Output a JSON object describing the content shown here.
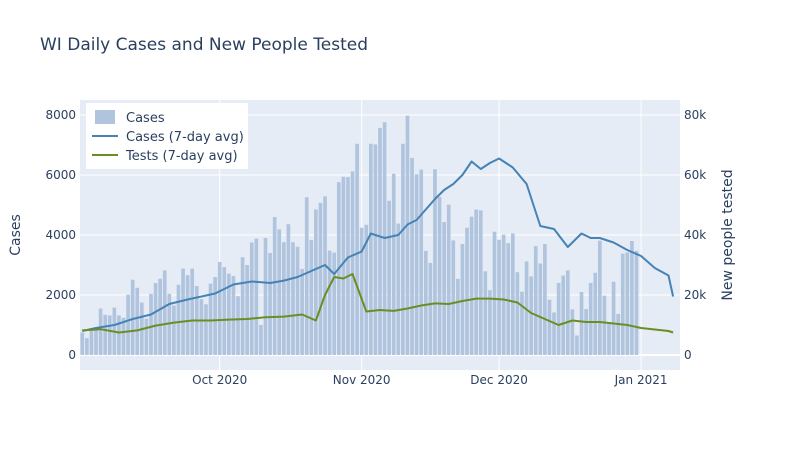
{
  "chart_data": {
    "type": "bar",
    "title": "WI Daily Cases and New People Tested",
    "ylabel": "Cases",
    "y2label": "New people tested",
    "ylim": [
      -500,
      8500
    ],
    "y2lim": [
      -5000,
      85000
    ],
    "yticks": [
      "0",
      "2000",
      "4000",
      "6000",
      "8000"
    ],
    "y2ticks": [
      "0",
      "20k",
      "40k",
      "60k",
      "80k"
    ],
    "xticks": [
      "Oct 2020",
      "Nov 2020",
      "Dec 2020",
      "Jan 2021"
    ],
    "x_start_date": "2020-09-01",
    "x_end_date": "2021-01-08",
    "grid": true,
    "legend_position": "top-left",
    "colors": {
      "bars": "#b0c4de",
      "cases_avg": "#4682b4",
      "tests_avg": "#6b8e23",
      "plot_bg": "#e5ecf6"
    },
    "series": [
      {
        "name": "Cases",
        "kind": "bar",
        "axis": "left",
        "values": [
          750,
          560,
          900,
          820,
          1550,
          1340,
          1320,
          1580,
          1320,
          1240,
          2010,
          2510,
          2240,
          1750,
          1210,
          2040,
          2400,
          2540,
          2820,
          2040,
          1650,
          2340,
          2880,
          2660,
          2880,
          2300,
          1860,
          1690,
          2380,
          2600,
          3100,
          2930,
          2710,
          2630,
          1960,
          3260,
          3000,
          3750,
          3880,
          1000,
          3900,
          3400,
          4600,
          4190,
          3760,
          4360,
          3760,
          3610,
          2870,
          5260,
          3830,
          4850,
          5070,
          5290,
          3480,
          3410,
          5760,
          5940,
          5930,
          6120,
          7040,
          4240,
          4340,
          7040,
          7020,
          7570,
          7760,
          5140,
          6040,
          4380,
          7040,
          7980,
          6570,
          6020,
          6180,
          3470,
          3070,
          6190,
          5270,
          4430,
          5010,
          3820,
          2540,
          3700,
          4240,
          4610,
          4850,
          4820,
          2790,
          2160,
          4110,
          3840,
          4010,
          3730,
          4050,
          2760,
          2110,
          3120,
          2620,
          3630,
          3050,
          3700,
          1840,
          1420,
          2400,
          2650,
          2820,
          1520,
          650,
          2100,
          1530,
          2400,
          2740,
          3810,
          1980,
          1050,
          2440,
          1370,
          3380,
          3420,
          3800,
          3470
        ],
        "note": "daily bar heights, approx. from 2020-09-01"
      },
      {
        "name": "Cases (7-day avg)",
        "kind": "line",
        "axis": "left",
        "x": [
          "2020-09-01",
          "2020-09-04",
          "2020-09-08",
          "2020-09-12",
          "2020-09-16",
          "2020-09-20",
          "2020-09-24",
          "2020-09-27",
          "2020-09-30",
          "2020-10-04",
          "2020-10-08",
          "2020-10-12",
          "2020-10-15",
          "2020-10-18",
          "2020-10-21",
          "2020-10-24",
          "2020-10-26",
          "2020-10-29",
          "2020-11-01",
          "2020-11-03",
          "2020-11-06",
          "2020-11-09",
          "2020-11-11",
          "2020-11-13",
          "2020-11-15",
          "2020-11-17",
          "2020-11-19",
          "2020-11-21",
          "2020-11-23",
          "2020-11-25",
          "2020-11-27",
          "2020-11-29",
          "2020-12-01",
          "2020-12-04",
          "2020-12-07",
          "2020-12-10",
          "2020-12-13",
          "2020-12-16",
          "2020-12-19",
          "2020-12-21",
          "2020-12-23",
          "2020-12-26",
          "2020-12-29",
          "2021-01-01",
          "2021-01-04",
          "2021-01-07",
          "2021-01-08"
        ],
        "y": [
          800,
          900,
          1000,
          1200,
          1350,
          1700,
          1850,
          1950,
          2050,
          2350,
          2450,
          2400,
          2480,
          2600,
          2800,
          3000,
          2700,
          3250,
          3450,
          4050,
          3900,
          4000,
          4350,
          4500,
          4850,
          5200,
          5500,
          5700,
          6000,
          6450,
          6200,
          6400,
          6550,
          6250,
          5700,
          4300,
          4200,
          3600,
          4050,
          3900,
          3900,
          3750,
          3500,
          3300,
          2900,
          2650,
          1950
        ],
        "note": "approx. line values"
      },
      {
        "name": "Tests (7-day avg)",
        "kind": "line",
        "axis": "right",
        "x": [
          "2020-09-01",
          "2020-09-05",
          "2020-09-09",
          "2020-09-13",
          "2020-09-17",
          "2020-09-21",
          "2020-09-25",
          "2020-09-29",
          "2020-10-03",
          "2020-10-07",
          "2020-10-11",
          "2020-10-15",
          "2020-10-19",
          "2020-10-22",
          "2020-10-24",
          "2020-10-26",
          "2020-10-28",
          "2020-10-30",
          "2020-11-02",
          "2020-11-05",
          "2020-11-08",
          "2020-11-11",
          "2020-11-14",
          "2020-11-17",
          "2020-11-20",
          "2020-11-23",
          "2020-11-26",
          "2020-11-29",
          "2020-12-02",
          "2020-12-05",
          "2020-12-08",
          "2020-12-11",
          "2020-12-14",
          "2020-12-17",
          "2020-12-20",
          "2020-12-23",
          "2020-12-26",
          "2020-12-29",
          "2021-01-01",
          "2021-01-04",
          "2021-01-07",
          "2021-01-08"
        ],
        "y": [
          8200,
          8600,
          7500,
          8200,
          9800,
          10800,
          11500,
          11500,
          11800,
          12000,
          12600,
          12800,
          13500,
          11500,
          20000,
          26000,
          25500,
          27000,
          14500,
          15000,
          14700,
          15500,
          16500,
          17200,
          17000,
          18000,
          18800,
          18800,
          18500,
          17500,
          14000,
          12000,
          10000,
          11500,
          11000,
          11000,
          10500,
          10000,
          9000,
          8500,
          8000,
          7500
        ],
        "note": "approx. line values"
      }
    ]
  }
}
